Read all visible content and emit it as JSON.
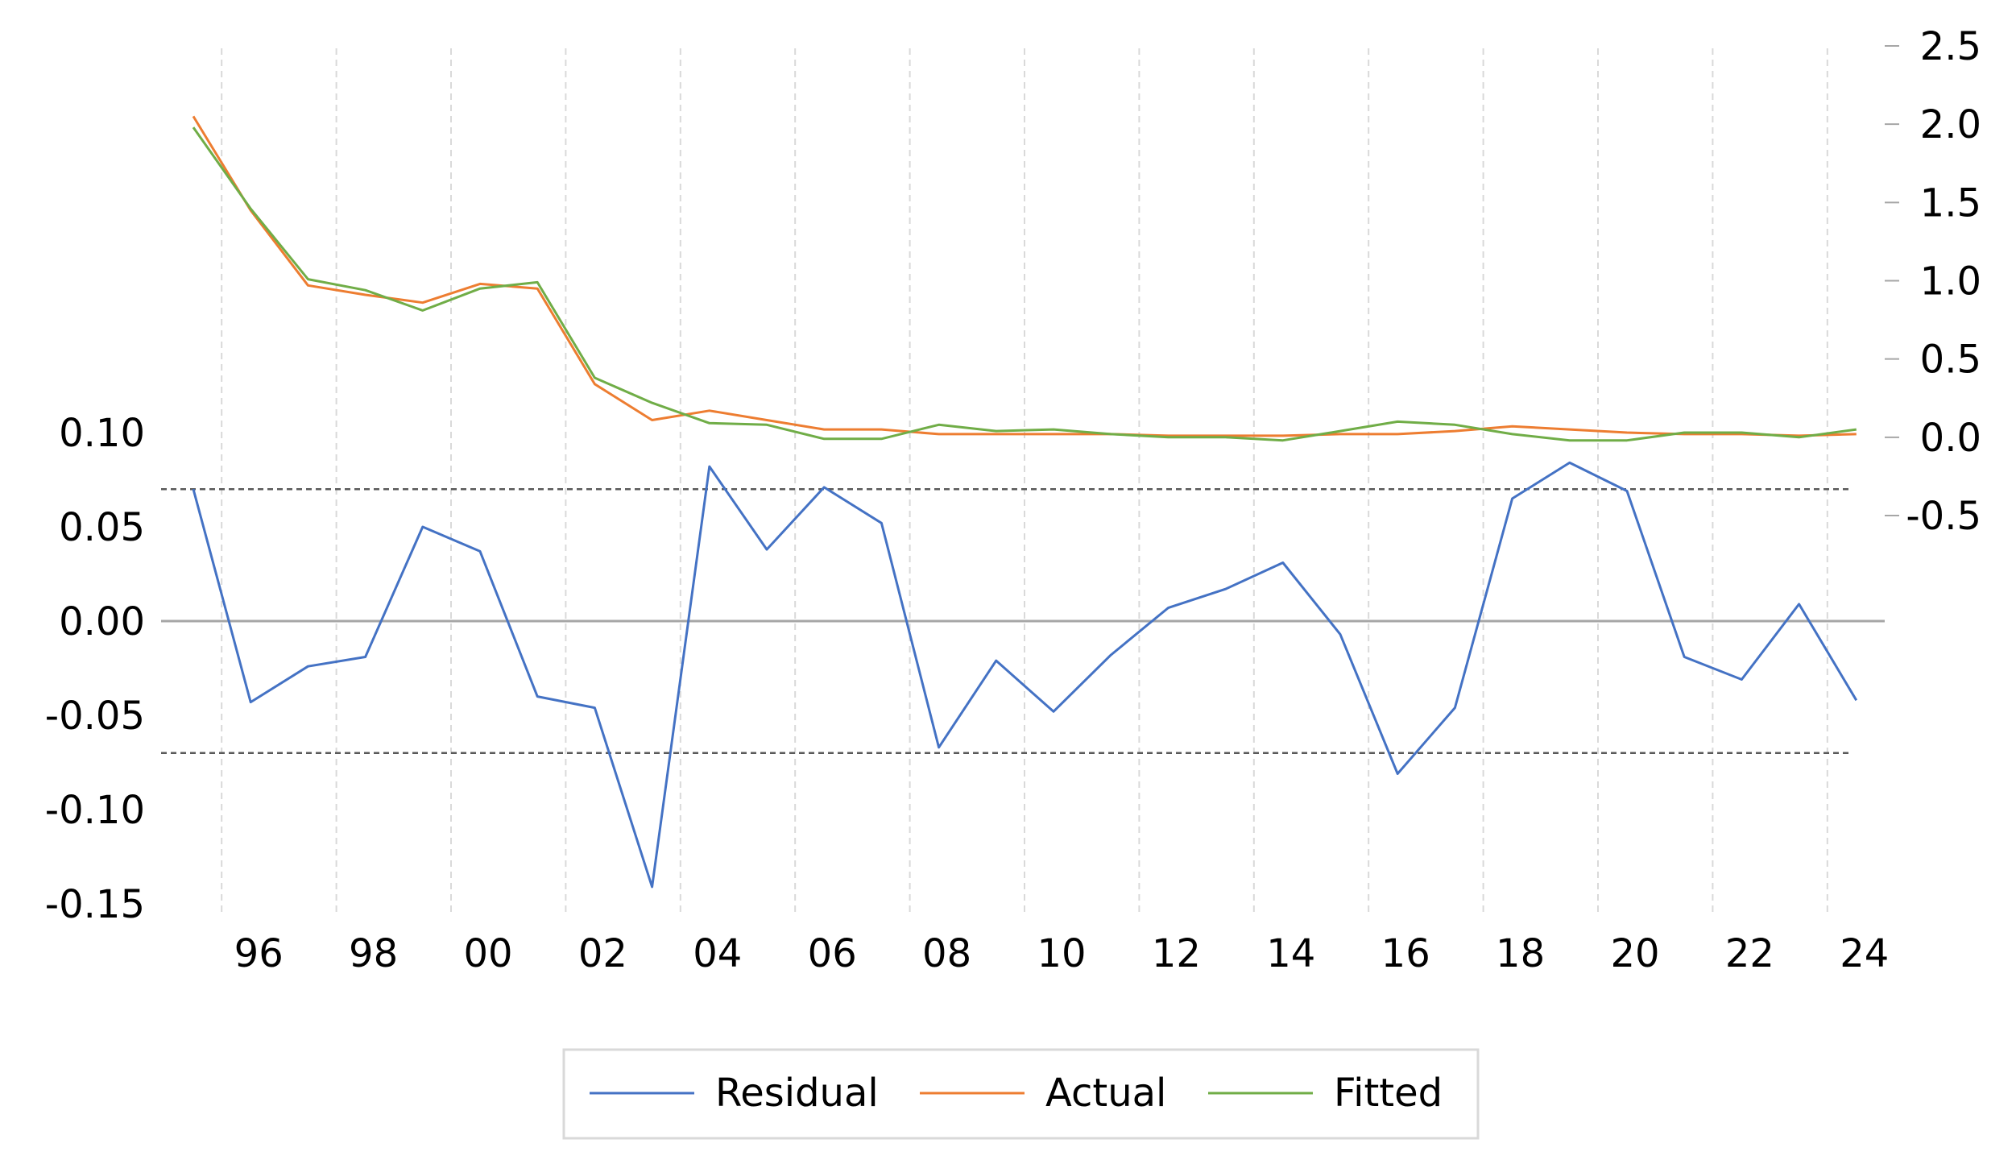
{
  "chart_data": {
    "type": "line",
    "x": [
      "1995",
      "1996",
      "1997",
      "1998",
      "1999",
      "2000",
      "2001",
      "2002",
      "2003",
      "2004",
      "2005",
      "2006",
      "2007",
      "2008",
      "2009",
      "2010",
      "2011",
      "2012",
      "2013",
      "2014",
      "2015",
      "2016",
      "2017",
      "2018",
      "2019",
      "2020",
      "2021",
      "2022",
      "2023",
      "2024"
    ],
    "x_tick_labels": [
      "96",
      "98",
      "00",
      "02",
      "04",
      "06",
      "08",
      "10",
      "12",
      "14",
      "16",
      "18",
      "20",
      "22",
      "24"
    ],
    "left_axis": {
      "range": [
        -0.15,
        0.1
      ],
      "ticks": [
        "0.10",
        "0.05",
        "0.00",
        "-0.05",
        "-0.10",
        "-0.15"
      ]
    },
    "right_axis": {
      "range": [
        -0.5,
        2.5
      ],
      "ticks": [
        "2.5",
        "2.0",
        "1.5",
        "1.0",
        "0.5",
        "0.0",
        "-0.5"
      ]
    },
    "residual_bands": [
      0.07,
      -0.07
    ],
    "series": [
      {
        "name": "Residual",
        "axis": "left",
        "color": "#4472c4",
        "values": [
          0.07,
          -0.043,
          -0.024,
          -0.019,
          0.05,
          0.037,
          -0.04,
          -0.046,
          -0.141,
          0.082,
          0.038,
          0.071,
          0.052,
          -0.067,
          -0.021,
          -0.048,
          -0.018,
          0.007,
          0.017,
          0.031,
          -0.007,
          -0.081,
          -0.046,
          0.065,
          0.084,
          0.069,
          -0.019,
          -0.031,
          0.009,
          -0.042
        ]
      },
      {
        "name": "Actual",
        "axis": "right",
        "color": "#ed7d31",
        "values": [
          2.05,
          1.45,
          0.97,
          0.91,
          0.86,
          0.98,
          0.95,
          0.34,
          0.11,
          0.17,
          0.11,
          0.05,
          0.05,
          0.02,
          0.02,
          0.02,
          0.02,
          0.01,
          0.01,
          0.01,
          0.02,
          0.02,
          0.04,
          0.07,
          0.05,
          0.03,
          0.02,
          0.02,
          0.01,
          0.02
        ]
      },
      {
        "name": "Fitted",
        "axis": "right",
        "color": "#70ad47",
        "values": [
          1.98,
          1.46,
          1.01,
          0.94,
          0.81,
          0.95,
          0.99,
          0.38,
          0.22,
          0.09,
          0.08,
          -0.01,
          -0.01,
          0.08,
          0.04,
          0.05,
          0.02,
          0.0,
          0.0,
          -0.02,
          0.04,
          0.1,
          0.08,
          0.02,
          -0.02,
          -0.02,
          0.03,
          0.03,
          0.0,
          0.05
        ]
      }
    ]
  }
}
